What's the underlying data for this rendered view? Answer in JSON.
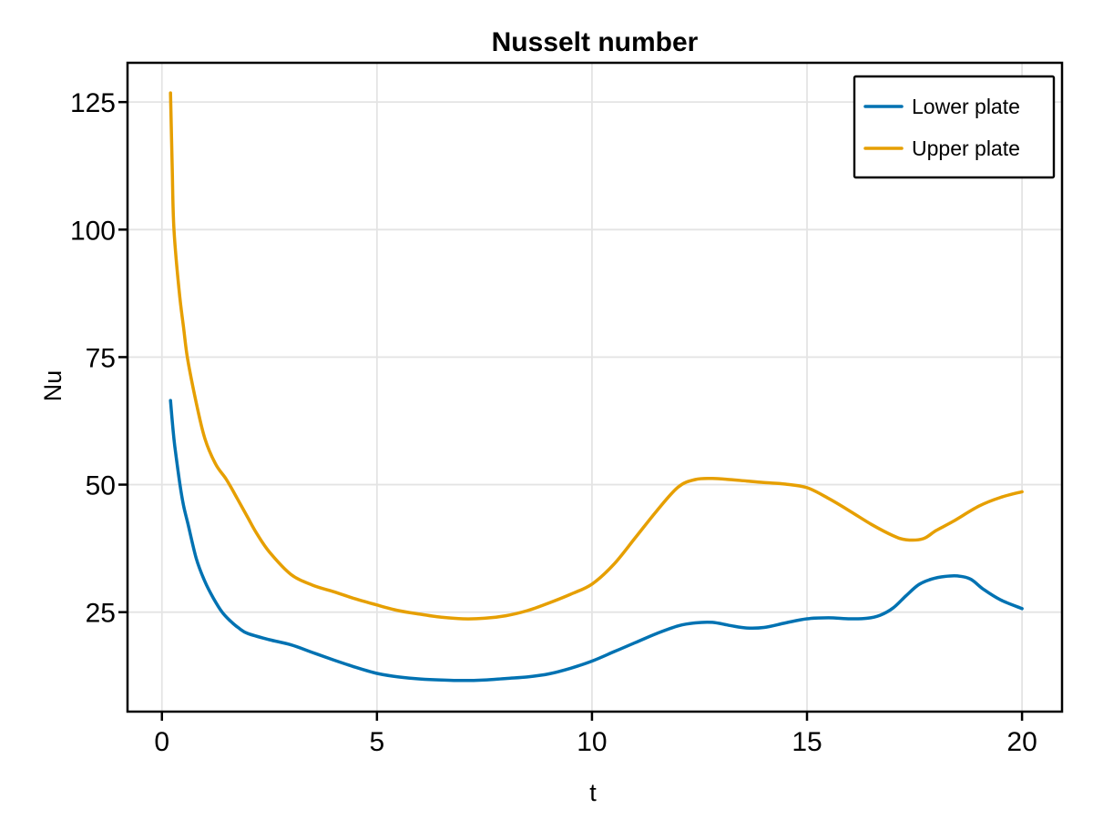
{
  "chart_data": {
    "type": "line",
    "title": "Nusselt number",
    "xlabel": "t",
    "ylabel": "Nu",
    "xlim": [
      -0.8,
      20.93
    ],
    "ylim": [
      5.5,
      132.7
    ],
    "xticks": [
      0,
      5,
      10,
      15,
      20
    ],
    "yticks": [
      25,
      50,
      75,
      100,
      125
    ],
    "xtick_labels": [
      "0",
      "5",
      "10",
      "15",
      "20"
    ],
    "ytick_labels": [
      "25",
      "50",
      "75",
      "100",
      "125"
    ],
    "grid": true,
    "legend_position": "top-right",
    "series": [
      {
        "name": "Lower plate",
        "color": "#0072B2",
        "points": [
          [
            0.2,
            66.5
          ],
          [
            0.25,
            61.5
          ],
          [
            0.3,
            57.5
          ],
          [
            0.42,
            50
          ],
          [
            0.5,
            46
          ],
          [
            0.6,
            42.5
          ],
          [
            0.8,
            35.5
          ],
          [
            1.0,
            31
          ],
          [
            1.2,
            27.7
          ],
          [
            1.4,
            25
          ],
          [
            1.6,
            23.2
          ],
          [
            1.8,
            21.8
          ],
          [
            2.0,
            20.8
          ],
          [
            2.5,
            19.6
          ],
          [
            3.0,
            18.6
          ],
          [
            3.5,
            17.1
          ],
          [
            4.0,
            15.6
          ],
          [
            4.5,
            14.2
          ],
          [
            5.0,
            13.0
          ],
          [
            5.5,
            12.3
          ],
          [
            6.0,
            11.9
          ],
          [
            6.5,
            11.7
          ],
          [
            7.0,
            11.6
          ],
          [
            7.5,
            11.7
          ],
          [
            8.0,
            12.0
          ],
          [
            8.5,
            12.3
          ],
          [
            9.0,
            12.9
          ],
          [
            9.5,
            14.0
          ],
          [
            10.0,
            15.4
          ],
          [
            10.5,
            17.2
          ],
          [
            11.0,
            19.0
          ],
          [
            11.5,
            20.8
          ],
          [
            12.0,
            22.3
          ],
          [
            12.4,
            22.9
          ],
          [
            12.8,
            23.0
          ],
          [
            13.2,
            22.4
          ],
          [
            13.6,
            21.9
          ],
          [
            14.0,
            22.0
          ],
          [
            14.5,
            22.9
          ],
          [
            15.0,
            23.7
          ],
          [
            15.5,
            23.9
          ],
          [
            16.0,
            23.7
          ],
          [
            16.4,
            23.8
          ],
          [
            16.7,
            24.4
          ],
          [
            17.0,
            25.8
          ],
          [
            17.3,
            28.2
          ],
          [
            17.6,
            30.4
          ],
          [
            17.9,
            31.5
          ],
          [
            18.2,
            32.0
          ],
          [
            18.5,
            32.1
          ],
          [
            18.8,
            31.5
          ],
          [
            19.1,
            29.5
          ],
          [
            19.5,
            27.4
          ],
          [
            20.0,
            25.7
          ]
        ]
      },
      {
        "name": "Upper plate",
        "color": "#E69F00",
        "points": [
          [
            0.2,
            126.8
          ],
          [
            0.24,
            112
          ],
          [
            0.28,
            100
          ],
          [
            0.4,
            88
          ],
          [
            0.5,
            81
          ],
          [
            0.6,
            74.5
          ],
          [
            0.8,
            66
          ],
          [
            1.0,
            59
          ],
          [
            1.25,
            54
          ],
          [
            1.5,
            51
          ],
          [
            1.75,
            47.3
          ],
          [
            2.0,
            43.5
          ],
          [
            2.2,
            40.5
          ],
          [
            2.5,
            36.8
          ],
          [
            3.0,
            32.4
          ],
          [
            3.5,
            30.3
          ],
          [
            4.0,
            29.0
          ],
          [
            4.5,
            27.6
          ],
          [
            5.0,
            26.4
          ],
          [
            5.5,
            25.3
          ],
          [
            6.0,
            24.6
          ],
          [
            6.5,
            24.0
          ],
          [
            7.0,
            23.7
          ],
          [
            7.5,
            23.8
          ],
          [
            8.0,
            24.3
          ],
          [
            8.5,
            25.3
          ],
          [
            9.0,
            26.8
          ],
          [
            9.5,
            28.5
          ],
          [
            10.0,
            30.5
          ],
          [
            10.5,
            34.3
          ],
          [
            11.0,
            39.5
          ],
          [
            11.5,
            44.8
          ],
          [
            12.0,
            49.5
          ],
          [
            12.4,
            51.0
          ],
          [
            12.8,
            51.2
          ],
          [
            13.2,
            51.0
          ],
          [
            13.6,
            50.7
          ],
          [
            14.0,
            50.4
          ],
          [
            14.5,
            50.1
          ],
          [
            15.0,
            49.4
          ],
          [
            15.5,
            47.3
          ],
          [
            16.0,
            44.8
          ],
          [
            16.5,
            42.2
          ],
          [
            17.0,
            40.0
          ],
          [
            17.3,
            39.2
          ],
          [
            17.7,
            39.4
          ],
          [
            18.0,
            41.0
          ],
          [
            18.4,
            42.8
          ],
          [
            19.0,
            45.8
          ],
          [
            19.5,
            47.5
          ],
          [
            20.0,
            48.6
          ]
        ]
      }
    ]
  },
  "styles": {
    "background": "#ffffff",
    "grid_color": "#e4e4e4",
    "frame_color": "#000000",
    "text_color": "#000000",
    "legend_border_color": "#000000",
    "legend_fill": "#ffffff"
  }
}
